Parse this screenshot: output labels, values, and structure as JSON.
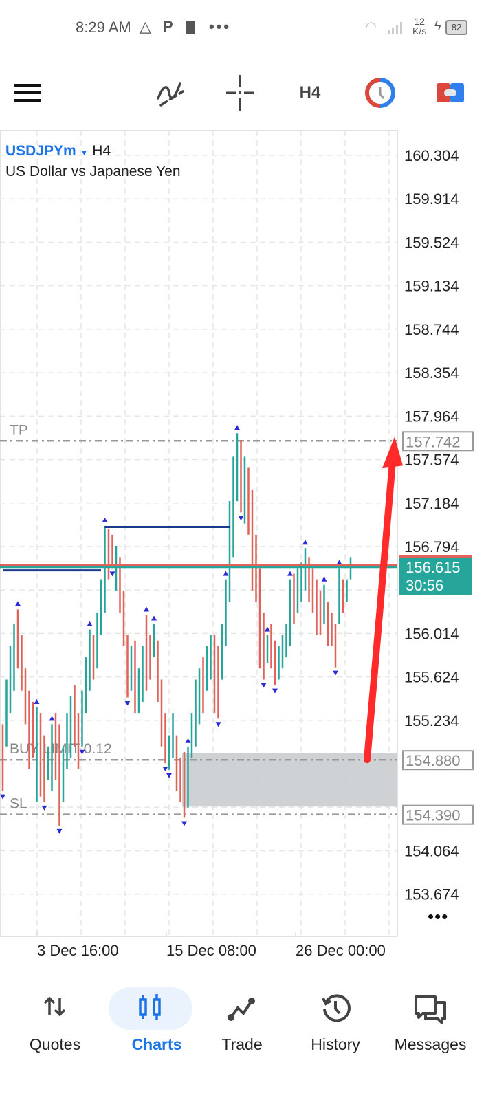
{
  "status_bar": {
    "time": "8:29 AM",
    "net_speed_value": "12",
    "net_speed_unit": "K/s",
    "battery": "82"
  },
  "toolbar": {
    "timeframe": "H4",
    "icons": [
      "menu-icon",
      "indicators-icon",
      "crosshair-icon",
      "timeframe",
      "clock-icon",
      "trade-toggle-icon"
    ]
  },
  "chart": {
    "symbol": "USDJPYm",
    "timeframe": "H4",
    "description": "US Dollar vs Japanese Yen",
    "price_ticks": [
      "160.304",
      "159.914",
      "159.524",
      "159.134",
      "158.744",
      "158.354",
      "157.964",
      "157.574",
      "157.184",
      "156.794",
      "156.014",
      "155.624",
      "155.234",
      "154.064",
      "153.674"
    ],
    "time_ticks": [
      "3 Dec 16:00",
      "15 Dec 08:00",
      "26 Dec 00:00"
    ],
    "current_price": "156.615",
    "countdown": "30:56",
    "levels": {
      "tp": {
        "label": "TP",
        "price": "157.742"
      },
      "order": {
        "label": "BUY LIMIT 0.12",
        "price": "154.880"
      },
      "sl": {
        "label": "SL",
        "price": "154.390"
      }
    },
    "colors": {
      "up": "#26a69a",
      "down": "#e0635a",
      "fractal": "#2b2bd8",
      "level_line": "#1a3a8f",
      "annotation_arrow": "#ff2a2a",
      "price_badge": "#26a69a"
    }
  },
  "chart_data": {
    "type": "bar",
    "bars_high_low_dir": [
      [
        155.2,
        154.6,
        "d"
      ],
      [
        155.6,
        155.0,
        "u"
      ],
      [
        155.9,
        155.3,
        "u"
      ],
      [
        156.1,
        155.5,
        "u"
      ],
      [
        156.23,
        155.7,
        "d"
      ],
      [
        156.0,
        155.5,
        "d"
      ],
      [
        155.7,
        155.2,
        "d"
      ],
      [
        155.5,
        154.8,
        "d"
      ],
      [
        155.4,
        154.9,
        "d"
      ],
      [
        155.35,
        154.5,
        "u"
      ],
      [
        155.3,
        154.55,
        "d"
      ],
      [
        155.1,
        154.5,
        "d"
      ],
      [
        155.0,
        154.7,
        "u"
      ],
      [
        155.2,
        154.6,
        "u"
      ],
      [
        155.3,
        154.7,
        "d"
      ],
      [
        155.2,
        154.29,
        "d"
      ],
      [
        155.0,
        154.5,
        "u"
      ],
      [
        155.3,
        154.8,
        "u"
      ],
      [
        155.45,
        154.9,
        "u"
      ],
      [
        155.55,
        155.0,
        "d"
      ],
      [
        155.3,
        154.8,
        "d"
      ],
      [
        155.5,
        155.0,
        "u"
      ],
      [
        155.8,
        155.3,
        "u"
      ],
      [
        156.05,
        155.5,
        "u"
      ],
      [
        156.0,
        155.6,
        "d"
      ],
      [
        156.2,
        155.7,
        "u"
      ],
      [
        156.5,
        156.0,
        "u"
      ],
      [
        156.98,
        156.2,
        "u"
      ],
      [
        156.95,
        156.5,
        "d"
      ],
      [
        156.9,
        156.6,
        "d"
      ],
      [
        156.8,
        156.4,
        "u"
      ],
      [
        156.7,
        156.2,
        "d"
      ],
      [
        156.4,
        155.9,
        "d"
      ],
      [
        156.0,
        155.44,
        "d"
      ],
      [
        155.9,
        155.5,
        "u"
      ],
      [
        155.95,
        155.3,
        "d"
      ],
      [
        155.7,
        155.3,
        "u"
      ],
      [
        155.9,
        155.4,
        "u"
      ],
      [
        156.18,
        155.5,
        "d"
      ],
      [
        156.0,
        155.6,
        "d"
      ],
      [
        156.1,
        155.8,
        "u"
      ],
      [
        155.95,
        155.4,
        "d"
      ],
      [
        155.6,
        155.0,
        "d"
      ],
      [
        155.3,
        154.85,
        "d"
      ],
      [
        155.1,
        154.79,
        "u"
      ],
      [
        155.3,
        154.9,
        "u"
      ],
      [
        155.1,
        154.6,
        "d"
      ],
      [
        154.9,
        154.5,
        "d"
      ],
      [
        154.95,
        154.36,
        "d"
      ],
      [
        155.0,
        154.45,
        "u"
      ],
      [
        155.3,
        154.9,
        "u"
      ],
      [
        155.6,
        155.0,
        "u"
      ],
      [
        155.7,
        155.2,
        "u"
      ],
      [
        155.8,
        155.3,
        "d"
      ],
      [
        155.9,
        155.5,
        "u"
      ],
      [
        156.0,
        155.6,
        "u"
      ],
      [
        156.0,
        155.3,
        "d"
      ],
      [
        155.9,
        155.25,
        "d"
      ],
      [
        156.1,
        155.6,
        "u"
      ],
      [
        156.5,
        155.9,
        "u"
      ],
      [
        157.2,
        156.3,
        "u"
      ],
      [
        157.6,
        156.7,
        "u"
      ],
      [
        157.81,
        157.2,
        "u"
      ],
      [
        157.75,
        157.1,
        "d"
      ],
      [
        157.6,
        157.0,
        "u"
      ],
      [
        157.5,
        156.9,
        "d"
      ],
      [
        157.3,
        156.4,
        "d"
      ],
      [
        156.9,
        156.3,
        "d"
      ],
      [
        156.6,
        155.7,
        "d"
      ],
      [
        156.2,
        155.6,
        "d"
      ],
      [
        156.0,
        155.75,
        "u"
      ],
      [
        156.1,
        155.7,
        "d"
      ],
      [
        155.95,
        155.55,
        "d"
      ],
      [
        155.9,
        155.6,
        "u"
      ],
      [
        156.0,
        155.7,
        "u"
      ],
      [
        156.1,
        155.8,
        "u"
      ],
      [
        156.5,
        155.9,
        "u"
      ],
      [
        156.55,
        156.1,
        "d"
      ],
      [
        156.6,
        156.2,
        "u"
      ],
      [
        156.65,
        156.3,
        "u"
      ],
      [
        156.78,
        156.4,
        "u"
      ],
      [
        156.7,
        156.3,
        "d"
      ],
      [
        156.6,
        156.2,
        "d"
      ],
      [
        156.5,
        156.0,
        "d"
      ],
      [
        156.4,
        156.0,
        "d"
      ],
      [
        156.45,
        156.1,
        "u"
      ],
      [
        156.3,
        155.9,
        "d"
      ],
      [
        156.2,
        155.9,
        "d"
      ],
      [
        156.1,
        155.71,
        "d"
      ],
      [
        156.6,
        156.1,
        "u"
      ],
      [
        156.5,
        156.2,
        "d"
      ],
      [
        156.5,
        156.3,
        "u"
      ],
      [
        156.7,
        156.5,
        "u"
      ]
    ],
    "fractals_up": [
      4,
      9,
      13,
      23,
      27,
      38,
      40,
      49,
      59,
      62,
      70,
      76,
      80,
      85,
      89
    ],
    "fractals_down": [
      0,
      11,
      15,
      21,
      29,
      33,
      43,
      44,
      48,
      57,
      63,
      69,
      72,
      88
    ],
    "level_segments": [
      {
        "from_bar": 0,
        "to_bar": 26,
        "price": 156.58
      },
      {
        "from_bar": 27,
        "to_bar": 60,
        "price": 156.97
      }
    ],
    "yrange": [
      153.674,
      160.304
    ]
  },
  "nav": {
    "items": [
      {
        "label": "Quotes",
        "icon": "quotes-icon"
      },
      {
        "label": "Charts",
        "icon": "charts-icon",
        "active": true
      },
      {
        "label": "Trade",
        "icon": "trade-icon"
      },
      {
        "label": "History",
        "icon": "history-icon"
      },
      {
        "label": "Messages",
        "icon": "messages-icon"
      }
    ]
  }
}
